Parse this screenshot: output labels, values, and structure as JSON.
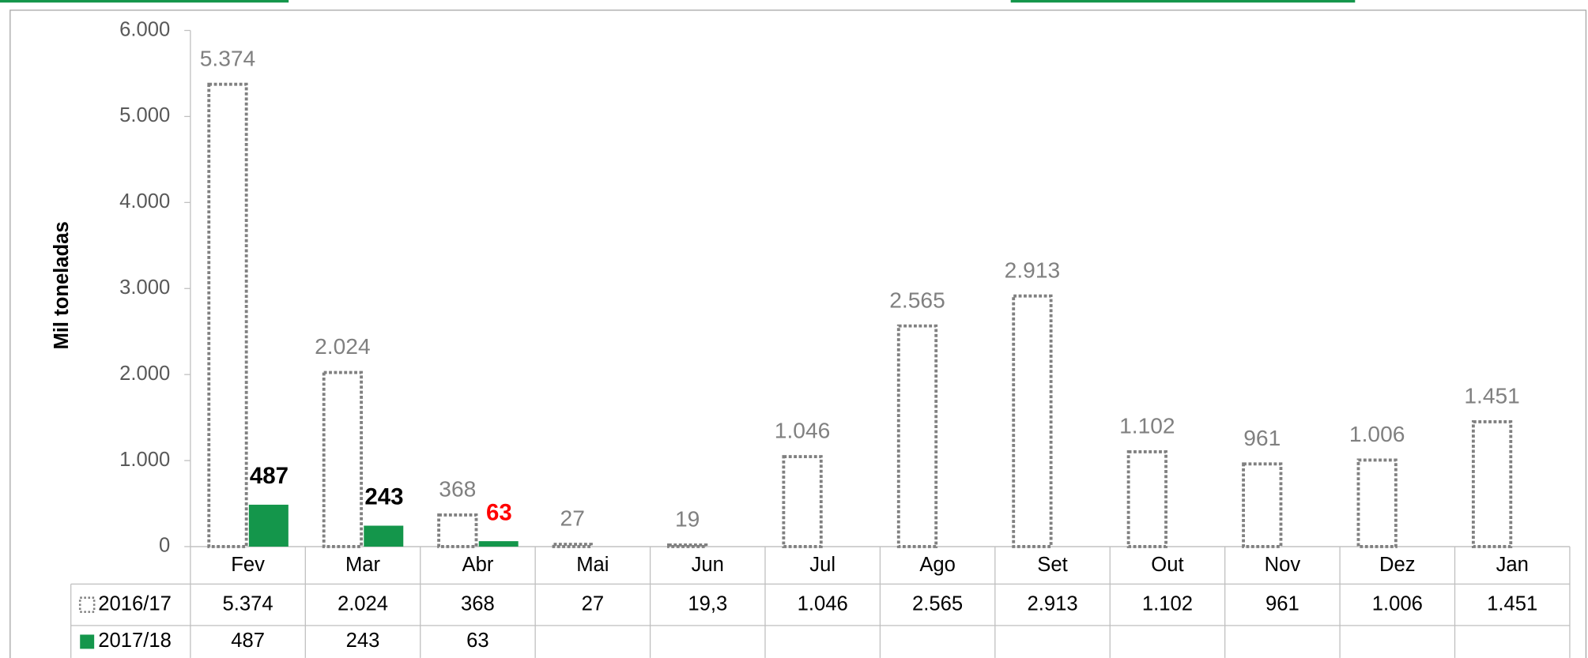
{
  "chart_data": {
    "type": "bar",
    "y_label": "Mil toneladas",
    "categories": [
      "Fev",
      "Mar",
      "Abr",
      "Mai",
      "Jun",
      "Jul",
      "Ago",
      "Set",
      "Out",
      "Nov",
      "Dez",
      "Jan"
    ],
    "ylim": [
      0,
      6000
    ],
    "yticks": [
      0,
      {
        "value": 1000,
        "label": "1.000"
      },
      {
        "value": 2000,
        "label": "2.000"
      },
      {
        "value": 3000,
        "label": "3.000"
      },
      {
        "value": 4000,
        "label": "4.000"
      },
      {
        "value": 5000,
        "label": "5.000"
      },
      {
        "value": 6000,
        "label": "6.000"
      }
    ],
    "series": [
      {
        "name": "2016/17",
        "color": "#808080",
        "style": "dotted",
        "values": [
          5374,
          2024,
          368,
          27,
          19.3,
          1046,
          2565,
          2913,
          1102,
          961,
          1006,
          1451
        ],
        "value_labels": [
          "5.374",
          "2.024",
          "368",
          "27",
          "19",
          "1.046",
          "2.565",
          "2.913",
          "1.102",
          "961",
          "1.006",
          "1.451"
        ],
        "table_labels": [
          "5.374",
          "2.024",
          "368",
          "27",
          "19,3",
          "1.046",
          "2.565",
          "2.913",
          "1.102",
          "961",
          "1.006",
          "1.451"
        ]
      },
      {
        "name": "2017/18",
        "color": "#14964b",
        "style": "solid",
        "values": [
          487,
          243,
          63,
          null,
          null,
          null,
          null,
          null,
          null,
          null,
          null,
          null
        ],
        "label_colors": [
          "#000000",
          "#000000",
          "#ff0000"
        ]
      }
    ]
  }
}
